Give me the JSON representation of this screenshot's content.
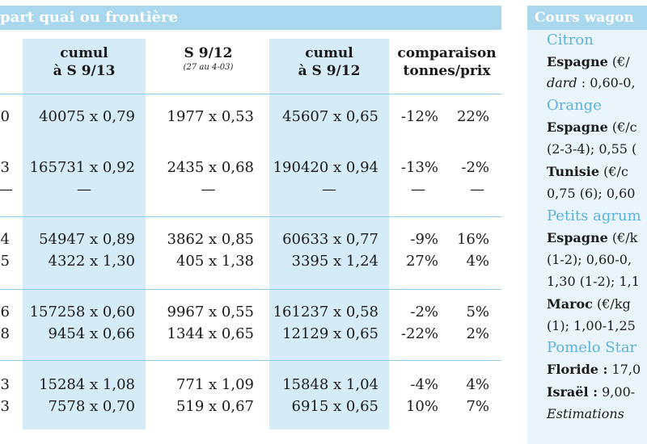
{
  "left_title": "part quai ou frontière",
  "columns": [
    {
      "line1": "cumul",
      "line2": "à S 9/13",
      "sub": ""
    },
    {
      "line1": "S 9/12",
      "line2": "",
      "sub": "(27 au 4-03)"
    },
    {
      "line1": "cumul",
      "line2": "à S 9/12",
      "sub": ""
    },
    {
      "line1": "comparaison",
      "line2": "tonnes/prix",
      "sub": ""
    }
  ],
  "rows": [
    {
      "edge": "0",
      "c1": "40075 x 0,79",
      "c2": "1977 x 0,53",
      "c3": "45607 x 0,65",
      "pct1": "-12%",
      "pct2": "22%"
    },
    {
      "edge": "3",
      "c1": "165731 x 0,92",
      "c2": "2435 x 0,68",
      "c3": "190420 x 0,94",
      "pct1": "-13%",
      "pct2": "-2%"
    },
    {
      "edge": "—",
      "c1": "—",
      "c2": "—",
      "c3": "—",
      "pct1": "—",
      "pct2": "—"
    },
    {
      "edge": "4",
      "c1": "54947 x 0,89",
      "c2": "3862 x 0,85",
      "c3": "60633 x 0,77",
      "pct1": "-9%",
      "pct2": "16%"
    },
    {
      "edge": "5",
      "c1": "4322 x 1,30",
      "c2": "405 x 1,38",
      "c3": "3395 x 1,24",
      "pct1": "27%",
      "pct2": "4%"
    },
    {
      "edge": "6",
      "c1": "157258 x 0,60",
      "c2": "9967 x 0,55",
      "c3": "161237 x 0,58",
      "pct1": "-2%",
      "pct2": "5%"
    },
    {
      "edge": "8",
      "c1": "9454 x 0,66",
      "c2": "1344 x 0,65",
      "c3": "12129 x 0,65",
      "pct1": "-22%",
      "pct2": "2%"
    },
    {
      "edge": "3",
      "c1": "15284 x 1,08",
      "c2": "771 x 1,09",
      "c3": "15848 x 1,04",
      "pct1": "-4%",
      "pct2": "4%"
    },
    {
      "edge": "3",
      "c1": "7578 x 0,70",
      "c2": "519 x 0,67",
      "c3": "6915 x 0,65",
      "pct1": "10%",
      "pct2": "7%"
    }
  ],
  "right_panel": {
    "title": "Cours wagon",
    "lines": [
      {
        "type": "cat",
        "text": "Citron"
      },
      {
        "type": "bold",
        "bold": "Espagne",
        "rest": " (€/"
      },
      {
        "type": "italic",
        "italic": "dard",
        "rest": " : 0,60-0,"
      },
      {
        "type": "cat",
        "text": "Orange"
      },
      {
        "type": "bold",
        "bold": "Espagne",
        "rest": " (€/c"
      },
      {
        "type": "plain",
        "text": "(2-3-4); 0,55 ("
      },
      {
        "type": "bold",
        "bold": "Tunisie",
        "rest": " (€/c"
      },
      {
        "type": "plain",
        "text": "0,75 (6); 0,60"
      },
      {
        "type": "cat",
        "text": "Petits agrum"
      },
      {
        "type": "bold",
        "bold": "Espagne",
        "rest": " (€/k"
      },
      {
        "type": "plain",
        "text": "(1-2); 0,60-0,"
      },
      {
        "type": "plain",
        "text": "1,30 (1-2); 1,1"
      },
      {
        "type": "bold",
        "bold": "Maroc",
        "rest": " (€/kg"
      },
      {
        "type": "plain",
        "text": "(1); 1,00-1,25"
      },
      {
        "type": "cat",
        "text": "Pomelo Star"
      },
      {
        "type": "bold",
        "bold": "Floride :",
        "rest": " 17,0"
      },
      {
        "type": "bold",
        "bold": "Israël :",
        "rest": " 9,00-"
      },
      {
        "type": "italicall",
        "text": "Estimations"
      }
    ]
  }
}
